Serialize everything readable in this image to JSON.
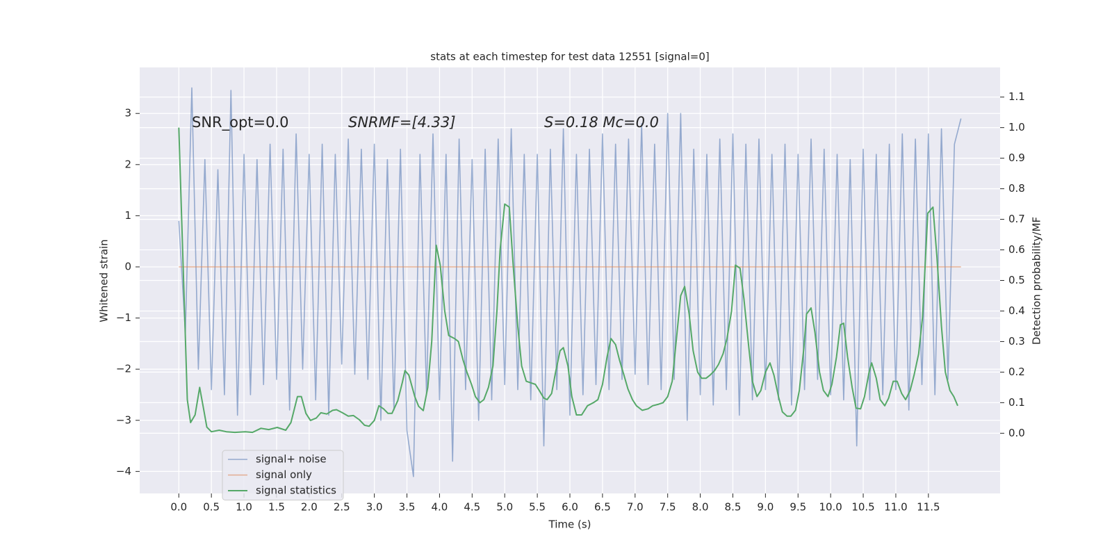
{
  "chart_data": {
    "type": "line",
    "title": "stats at each timestep for test data 12551 [signal=0]",
    "x_label": "Time (s)",
    "y_label": "Whitened strain",
    "y2_label": "Detection probability/MF",
    "annotations": [
      "SNR_opt=0.0",
      "SNRMF=[4.33]",
      "S=0.18   Mc=0.0"
    ],
    "grid": true,
    "legend": "lower left",
    "xlim": [
      -0.6,
      12.6
    ],
    "ylim": [
      -4.43,
      3.9
    ],
    "y2lim": [
      -0.197,
      1.197
    ],
    "xticks": [
      {
        "value": 0,
        "label": "0.0"
      },
      0.5,
      {
        "value": 1,
        "label": "1.0"
      },
      1.5,
      {
        "value": 2,
        "label": "2.0"
      },
      2.5,
      {
        "value": 3,
        "label": "3.0"
      },
      3.5,
      {
        "value": 4,
        "label": "4.0"
      },
      4.5,
      {
        "value": 5,
        "label": "5.0"
      },
      5.5,
      {
        "value": 6,
        "label": "6.0"
      },
      6.5,
      {
        "value": 7,
        "label": "7.0"
      },
      7.5,
      {
        "value": 8,
        "label": "8.0"
      },
      8.5,
      {
        "value": 9,
        "label": "9.0"
      },
      9.5,
      {
        "value": 10,
        "label": "10.0"
      },
      10.5,
      {
        "value": 11,
        "label": "11.0"
      },
      11.5
    ],
    "yticks": [
      {
        "value": -4,
        "label": "−4"
      },
      {
        "value": -3,
        "label": "−3"
      },
      {
        "value": -2,
        "label": "−2"
      },
      {
        "value": -1,
        "label": "−1"
      },
      0,
      1,
      2,
      3
    ],
    "y2ticks": [
      {
        "value": 0,
        "label": "0.0"
      },
      0.1,
      0.2,
      0.3,
      0.4,
      0.5,
      0.6,
      0.7,
      0.8,
      0.9,
      {
        "value": 1,
        "label": "1.0"
      },
      1.1
    ],
    "series": [
      {
        "name": "signal+ noise",
        "color": "#4c72b0",
        "x": [
          0,
          0.1,
          0.2,
          0.3,
          0.4,
          0.5,
          0.6,
          0.7,
          0.8,
          0.9,
          1,
          1.1,
          1.2,
          1.3,
          1.4,
          1.5,
          1.6,
          1.7,
          1.8,
          1.9,
          2,
          2.1,
          2.2,
          2.3,
          2.4,
          2.5,
          2.6,
          2.7,
          2.8,
          2.9,
          3,
          3.1,
          3.2,
          3.3,
          3.4,
          3.5,
          3.6,
          3.7,
          3.8,
          3.9,
          4,
          4.1,
          4.2,
          4.3,
          4.4,
          4.5,
          4.6,
          4.7,
          4.8,
          4.9,
          5,
          5.1,
          5.2,
          5.3,
          5.4,
          5.5,
          5.6,
          5.7,
          5.8,
          5.9,
          6,
          6.1,
          6.2,
          6.3,
          6.4,
          6.5,
          6.6,
          6.7,
          6.8,
          6.9,
          7,
          7.1,
          7.2,
          7.3,
          7.4,
          7.5,
          7.6,
          7.7,
          7.8,
          7.9,
          8,
          8.1,
          8.2,
          8.3,
          8.4,
          8.5,
          8.6,
          8.7,
          8.8,
          8.9,
          9,
          9.1,
          9.2,
          9.3,
          9.4,
          9.5,
          9.6,
          9.7,
          9.8,
          9.9,
          10,
          10.1,
          10.2,
          10.3,
          10.4,
          10.5,
          10.6,
          10.7,
          10.8,
          10.9,
          11,
          11.1,
          11.2,
          11.3,
          11.4,
          11.5,
          11.6,
          11.7,
          11.8,
          11.9,
          12
        ],
        "values": [
          0.9,
          -1.3,
          3.5,
          -2.0,
          2.1,
          -2.4,
          1.9,
          -2.5,
          3.45,
          -2.9,
          2.2,
          -2.5,
          2.1,
          -2.3,
          2.4,
          -2.2,
          2.3,
          -2.8,
          2.6,
          -2.0,
          2.2,
          -2.6,
          2.4,
          -2.9,
          2.2,
          -1.9,
          2.5,
          -2.1,
          2.3,
          -2.2,
          2.4,
          -3.0,
          2.1,
          -2.8,
          2.3,
          -3.2,
          -4.1,
          2.2,
          -2.5,
          2.6,
          -2.6,
          2.2,
          -3.8,
          2.5,
          -2.4,
          2.1,
          -3.0,
          2.3,
          -2.6,
          2.5,
          -2.3,
          2.7,
          -2.4,
          2.2,
          -2.6,
          2.2,
          -3.5,
          2.3,
          -2.4,
          2.7,
          -2.9,
          2.2,
          -2.5,
          2.3,
          -2.3,
          2.6,
          -2.4,
          2.4,
          -2.2,
          2.5,
          -2.1,
          2.8,
          -2.3,
          2.4,
          -2.4,
          3.0,
          -2.2,
          3.0,
          -3.0,
          2.3,
          -2.5,
          2.2,
          -2.7,
          2.5,
          -2.4,
          2.6,
          -2.9,
          2.4,
          -2.6,
          2.5,
          -2.4,
          2.2,
          -2.6,
          2.4,
          -2.7,
          2.2,
          -2.4,
          2.5,
          -2.2,
          2.3,
          -2.5,
          2.2,
          -2.6,
          2.1,
          -3.5,
          2.3,
          -2.6,
          2.2,
          -2.5,
          2.4,
          -2.4,
          2.6,
          -2.8,
          2.5,
          -2.3,
          2.6,
          -2.5,
          2.7,
          -2.2,
          2.4,
          2.9
        ]
      },
      {
        "name": "signal only",
        "color": "#dd8452",
        "x": [
          0,
          12
        ],
        "values": [
          0,
          0
        ]
      },
      {
        "name": "signal statistics",
        "color": "#55a868",
        "axis": "y2",
        "x": [
          0,
          0.13,
          0.18,
          0.25,
          0.32,
          0.38,
          0.43,
          0.5,
          0.62,
          0.73,
          0.86,
          1.02,
          1.13,
          1.26,
          1.38,
          1.51,
          1.64,
          1.72,
          1.82,
          1.88,
          1.95,
          2.02,
          2.11,
          2.18,
          2.27,
          2.36,
          2.42,
          2.51,
          2.6,
          2.68,
          2.77,
          2.85,
          2.92,
          3.0,
          3.07,
          3.14,
          3.21,
          3.27,
          3.36,
          3.43,
          3.47,
          3.53,
          3.62,
          3.68,
          3.75,
          3.82,
          3.88,
          3.95,
          4.01,
          4.08,
          4.14,
          4.23,
          4.29,
          4.36,
          4.42,
          4.49,
          4.55,
          4.62,
          4.68,
          4.75,
          4.82,
          4.88,
          4.93,
          5.0,
          5.07,
          5.13,
          5.2,
          5.26,
          5.33,
          5.4,
          5.47,
          5.53,
          5.6,
          5.65,
          5.72,
          5.78,
          5.85,
          5.9,
          5.97,
          6.03,
          6.1,
          6.18,
          6.27,
          6.36,
          6.43,
          6.5,
          6.57,
          6.63,
          6.7,
          6.76,
          6.83,
          6.89,
          6.96,
          7.02,
          7.11,
          7.2,
          7.27,
          7.36,
          7.43,
          7.5,
          7.57,
          7.63,
          7.7,
          7.76,
          7.83,
          7.89,
          7.96,
          8.02,
          8.09,
          8.15,
          8.22,
          8.28,
          8.35,
          8.41,
          8.48,
          8.54,
          8.61,
          8.67,
          8.74,
          8.8,
          8.87,
          8.93,
          9.0,
          9.07,
          9.13,
          9.2,
          9.26,
          9.33,
          9.39,
          9.46,
          9.52,
          9.59,
          9.63,
          9.7,
          9.76,
          9.83,
          9.89,
          9.96,
          10.02,
          10.09,
          10.15,
          10.2,
          10.26,
          10.33,
          10.39,
          10.46,
          10.52,
          10.59,
          10.63,
          10.7,
          10.76,
          10.83,
          10.89,
          10.96,
          11.02,
          11.09,
          11.15,
          11.22,
          11.28,
          11.35,
          11.41,
          11.49,
          11.57,
          11.63,
          11.7,
          11.76,
          11.83,
          11.89,
          11.95
        ],
        "values": [
          1.0,
          0.11,
          0.035,
          0.06,
          0.15,
          0.08,
          0.02,
          0.005,
          0.01,
          0.005,
          0.003,
          0.005,
          0.003,
          0.016,
          0.012,
          0.019,
          0.01,
          0.035,
          0.12,
          0.12,
          0.065,
          0.042,
          0.05,
          0.067,
          0.063,
          0.075,
          0.077,
          0.067,
          0.056,
          0.058,
          0.044,
          0.026,
          0.023,
          0.042,
          0.09,
          0.08,
          0.065,
          0.065,
          0.107,
          0.167,
          0.205,
          0.19,
          0.12,
          0.088,
          0.074,
          0.15,
          0.3,
          0.615,
          0.55,
          0.4,
          0.32,
          0.31,
          0.3,
          0.24,
          0.2,
          0.16,
          0.12,
          0.1,
          0.11,
          0.15,
          0.22,
          0.4,
          0.6,
          0.75,
          0.74,
          0.55,
          0.35,
          0.22,
          0.17,
          0.165,
          0.16,
          0.14,
          0.115,
          0.11,
          0.13,
          0.2,
          0.27,
          0.28,
          0.22,
          0.12,
          0.06,
          0.06,
          0.09,
          0.1,
          0.11,
          0.16,
          0.25,
          0.31,
          0.29,
          0.24,
          0.19,
          0.145,
          0.11,
          0.09,
          0.075,
          0.08,
          0.09,
          0.095,
          0.1,
          0.12,
          0.17,
          0.3,
          0.45,
          0.48,
          0.39,
          0.27,
          0.2,
          0.18,
          0.18,
          0.19,
          0.205,
          0.225,
          0.26,
          0.31,
          0.4,
          0.55,
          0.54,
          0.44,
          0.29,
          0.17,
          0.12,
          0.14,
          0.2,
          0.23,
          0.19,
          0.12,
          0.07,
          0.056,
          0.056,
          0.075,
          0.14,
          0.28,
          0.39,
          0.41,
          0.33,
          0.2,
          0.14,
          0.12,
          0.16,
          0.25,
          0.355,
          0.36,
          0.25,
          0.15,
          0.082,
          0.08,
          0.12,
          0.2,
          0.23,
          0.18,
          0.11,
          0.09,
          0.115,
          0.17,
          0.17,
          0.13,
          0.11,
          0.14,
          0.19,
          0.26,
          0.38,
          0.72,
          0.74,
          0.58,
          0.35,
          0.2,
          0.14,
          0.12,
          0.09
        ]
      }
    ]
  }
}
